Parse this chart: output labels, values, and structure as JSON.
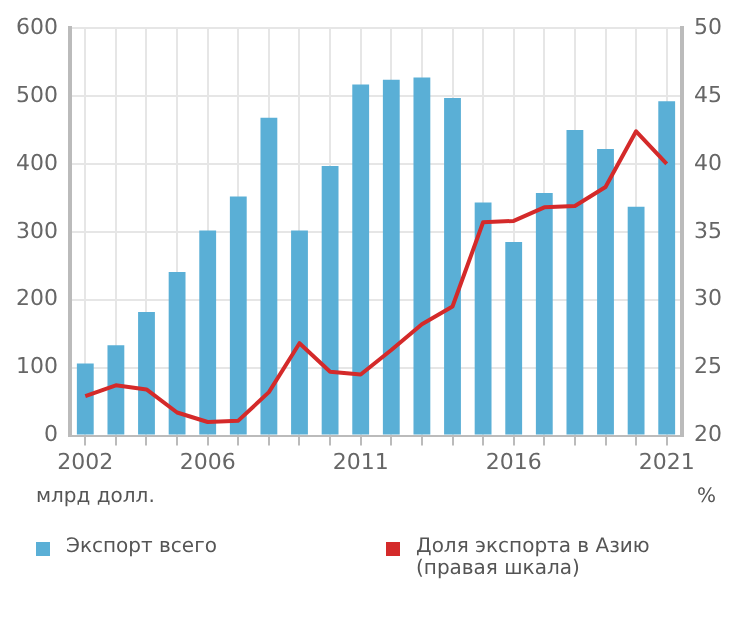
{
  "chart_data": {
    "type": "bar",
    "categories": [
      "2002",
      null,
      null,
      null,
      "2006",
      null,
      null,
      null,
      null,
      "2011",
      null,
      null,
      null,
      null,
      "2016",
      null,
      null,
      null,
      null,
      "2021"
    ],
    "series": [
      {
        "name": "Экспорт всего",
        "color": "#5aafd6",
        "values": [
          106,
          133,
          182,
          241,
          302,
          352,
          468,
          302,
          397,
          517,
          524,
          527,
          497,
          343,
          285,
          357,
          450,
          422,
          337,
          492
        ]
      },
      {
        "name": "Доля экспорта в Азию (правая шкала)",
        "type": "line",
        "axis": "y2",
        "color": "#d42a2a",
        "values": [
          22.9,
          23.7,
          23.4,
          21.7,
          21.0,
          21.1,
          23.2,
          26.8,
          24.7,
          24.5,
          26.3,
          28.2,
          29.5,
          35.7,
          35.8,
          36.8,
          36.9,
          38.3,
          42.4,
          40.0
        ]
      }
    ],
    "ylabel": "млрд долл.",
    "y2label": "%",
    "ylim": [
      0,
      600
    ],
    "yticks": [
      0,
      100,
      200,
      300,
      400,
      500,
      600
    ],
    "y2lim": [
      20,
      50
    ],
    "y2ticks": [
      20,
      25,
      30,
      35,
      40,
      45,
      50
    ],
    "grid": true,
    "legend": "bottom",
    "marker": "none",
    "line_style": "solid"
  }
}
